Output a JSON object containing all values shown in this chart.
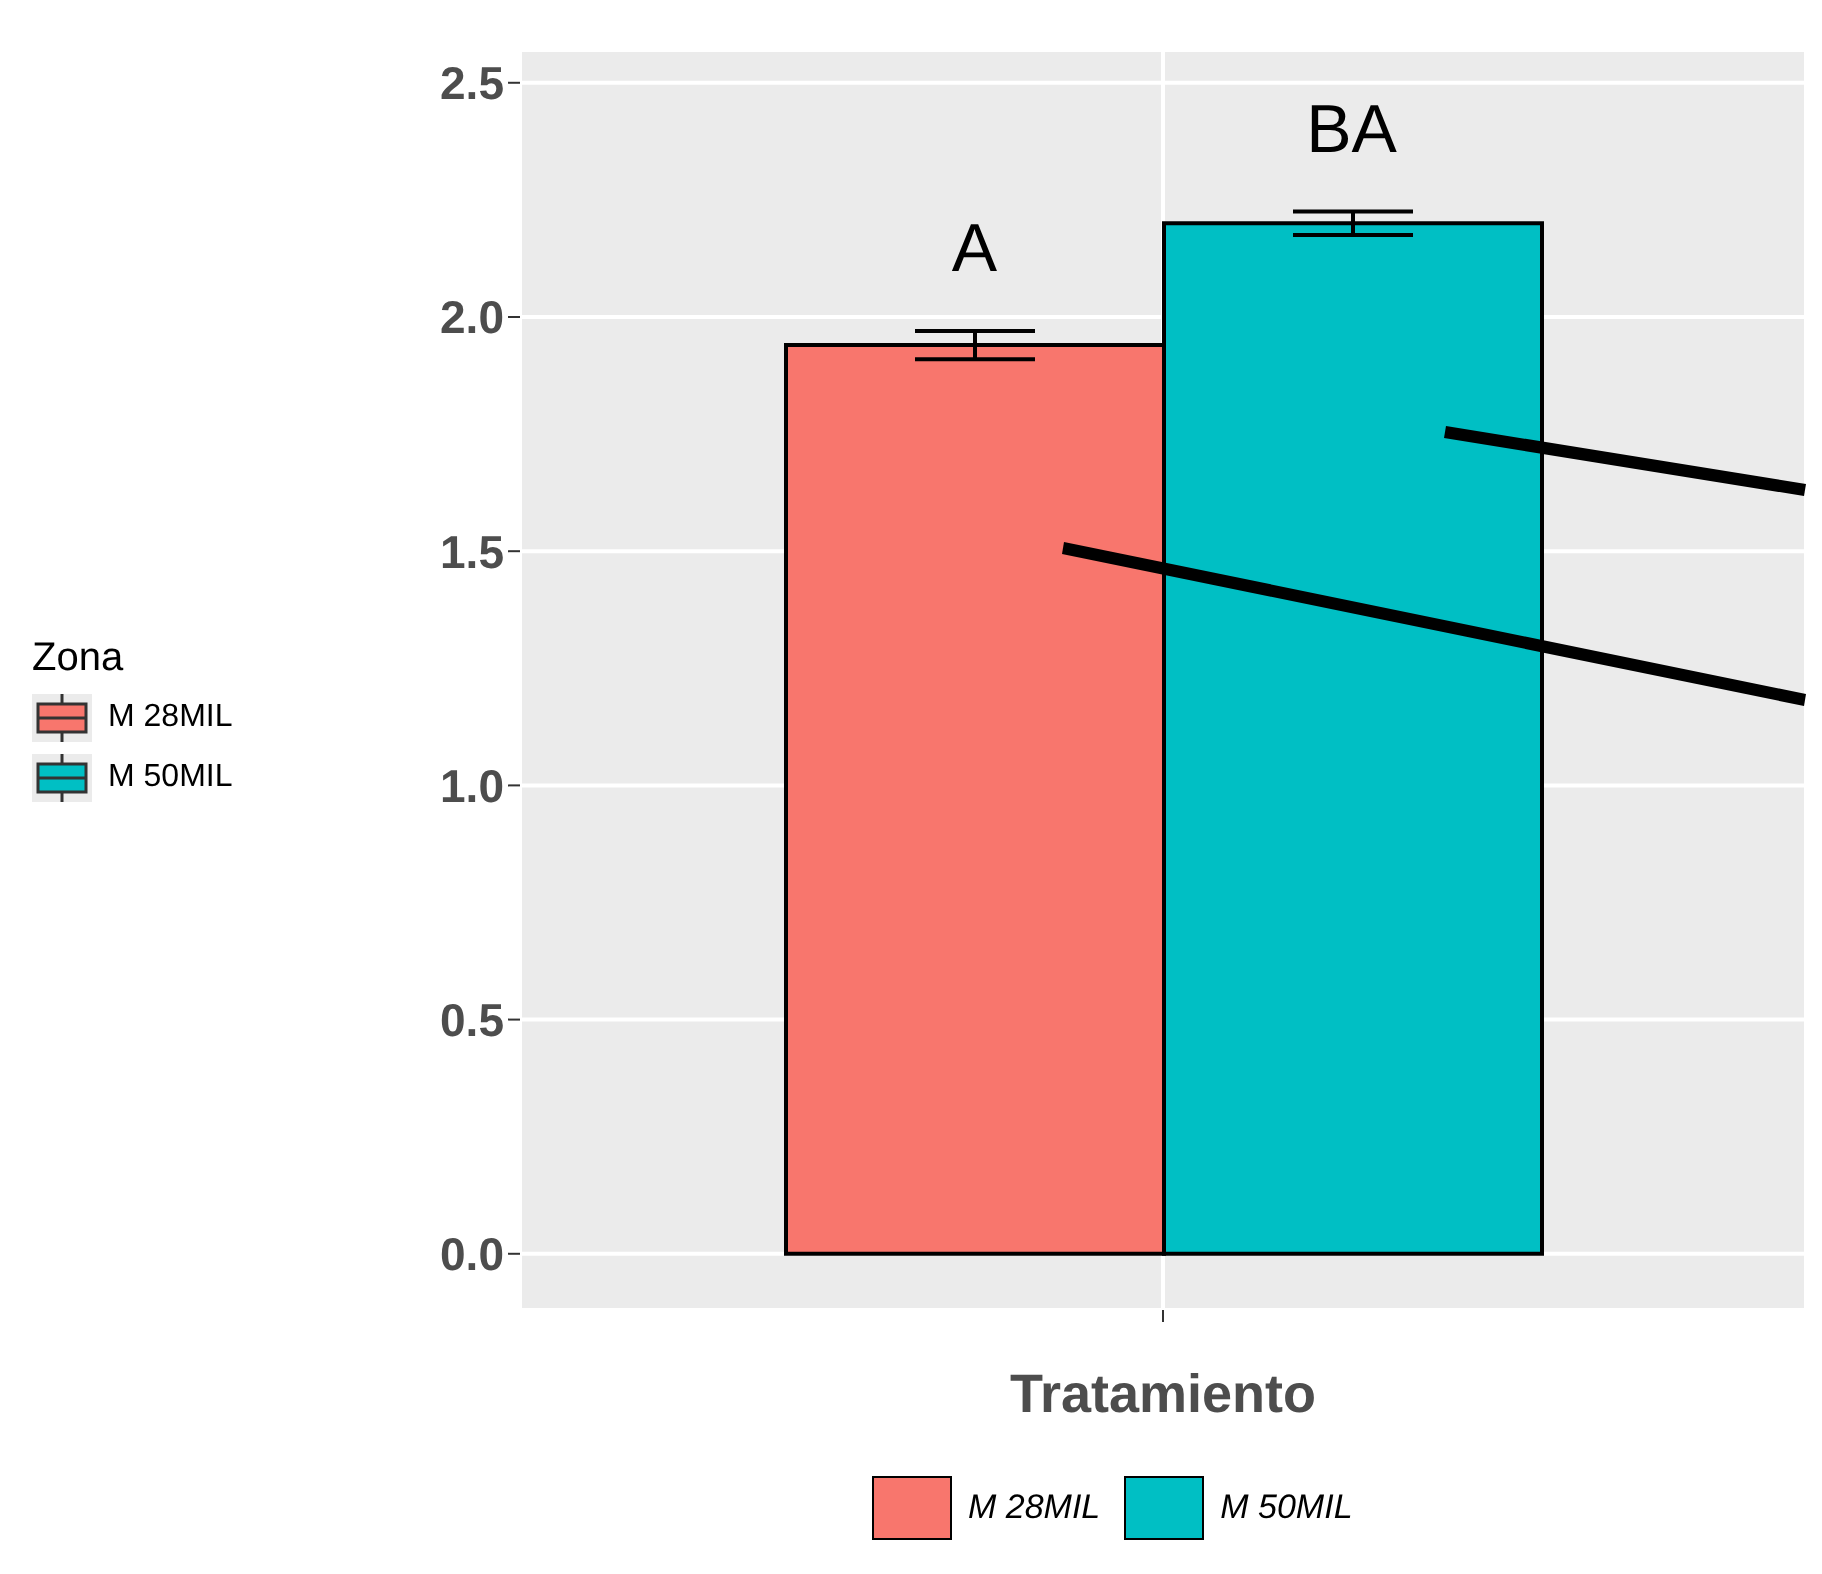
{
  "chart_data": {
    "type": "bar",
    "xlabel": "Tratamiento",
    "legend_title": "Zona",
    "categories": [
      null
    ],
    "series": [
      {
        "name": "M 28MIL",
        "color": "#f8766d",
        "values": [
          1.94
        ],
        "errors": [
          0.03
        ]
      },
      {
        "name": "M 50MIL",
        "color": "#00bfc4",
        "values": [
          2.2
        ],
        "errors": [
          0.025
        ]
      }
    ],
    "ylim": [
      -0.12,
      2.57
    ],
    "yticks": [
      {
        "value": 0,
        "label": "0.0"
      },
      {
        "value": 0.5,
        "label": "0.5"
      },
      {
        "value": 1,
        "label": "1.0"
      },
      {
        "value": 1.5,
        "label": "1.5"
      },
      {
        "value": 2,
        "label": "2.0"
      },
      {
        "value": 2.5,
        "label": "2.5"
      }
    ],
    "grid": true,
    "legend": "left",
    "annotations": [
      "A",
      "BA"
    ]
  }
}
